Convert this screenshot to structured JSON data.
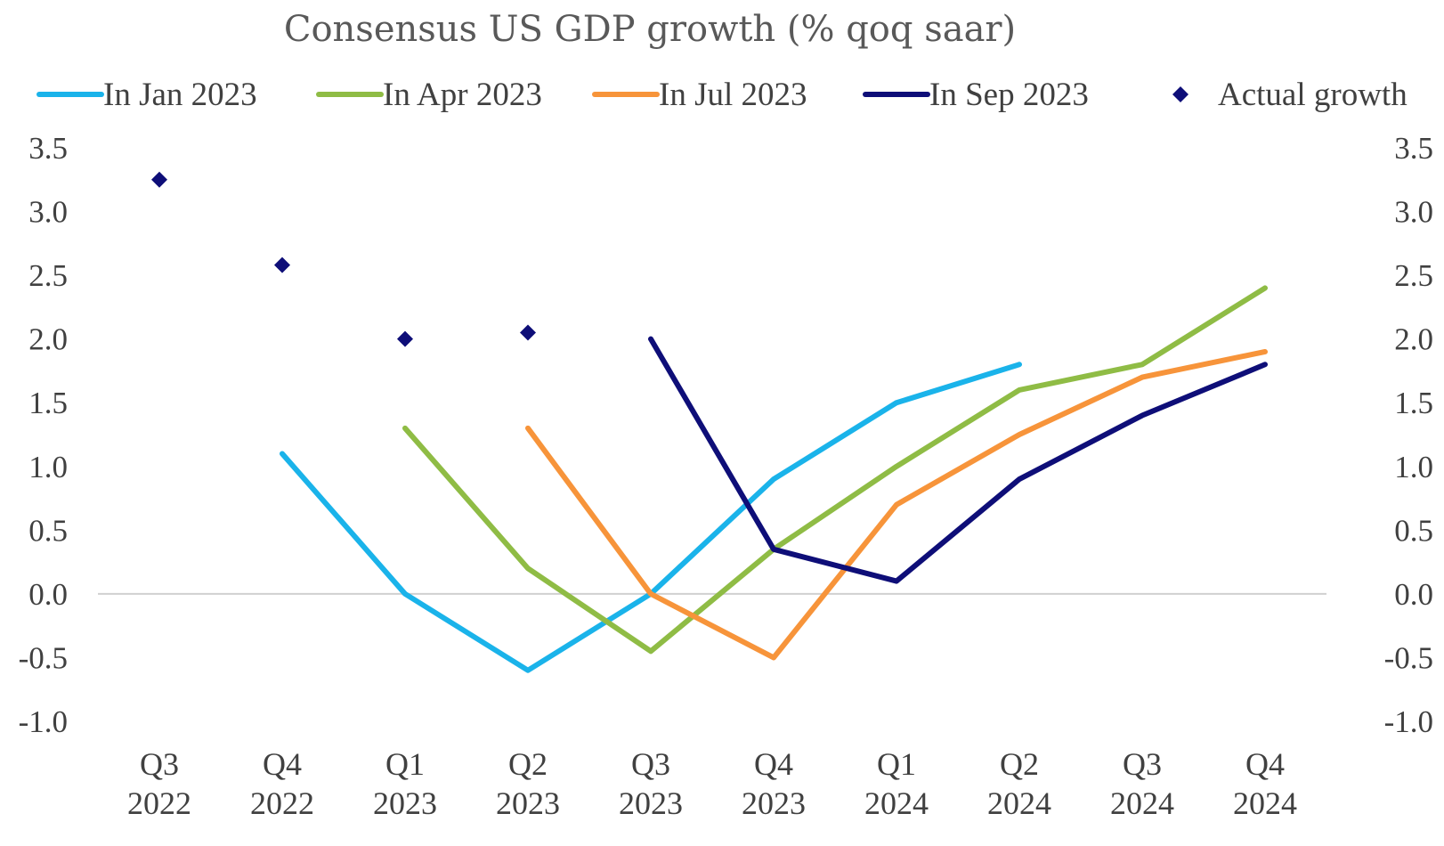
{
  "chart_data": {
    "type": "line",
    "title": "Consensus US GDP growth (% qoq saar)",
    "categories": [
      [
        "Q3",
        "2022"
      ],
      [
        "Q4",
        "2022"
      ],
      [
        "Q1",
        "2023"
      ],
      [
        "Q2",
        "2023"
      ],
      [
        "Q3",
        "2023"
      ],
      [
        "Q4",
        "2023"
      ],
      [
        "Q1",
        "2024"
      ],
      [
        "Q2",
        "2024"
      ],
      [
        "Q3",
        "2024"
      ],
      [
        "Q4",
        "2024"
      ]
    ],
    "ylim": [
      -1.0,
      3.5
    ],
    "yticks": [
      "3.5",
      "3.0",
      "2.5",
      "2.0",
      "1.5",
      "1.0",
      "0.5",
      "0.0",
      "-0.5",
      "-1.0"
    ],
    "ytick_values": [
      3.5,
      3.0,
      2.5,
      2.0,
      1.5,
      1.0,
      0.5,
      0.0,
      -0.5,
      -1.0
    ],
    "legend_position": "top",
    "series": [
      {
        "name": "In Jan 2023",
        "kind": "line",
        "color": "#1ab3ea",
        "values": [
          null,
          1.1,
          0.0,
          -0.6,
          0.0,
          0.9,
          1.5,
          1.8,
          null,
          null
        ]
      },
      {
        "name": "In Apr 2023",
        "kind": "line",
        "color": "#8fbc45",
        "values": [
          null,
          null,
          1.3,
          0.2,
          -0.45,
          0.35,
          1.0,
          1.6,
          1.8,
          2.4
        ]
      },
      {
        "name": "In Jul 2023",
        "kind": "line",
        "color": "#f7943a",
        "values": [
          null,
          null,
          null,
          1.3,
          0.0,
          -0.5,
          0.7,
          1.25,
          1.7,
          1.9
        ]
      },
      {
        "name": "In Sep 2023",
        "kind": "line",
        "color": "#0e0e78",
        "values": [
          null,
          null,
          null,
          null,
          2.0,
          0.35,
          0.1,
          0.9,
          1.4,
          1.8
        ]
      },
      {
        "name": "Actual growth",
        "kind": "marker",
        "color": "#0e0e78",
        "values": [
          3.25,
          2.58,
          2.0,
          2.05,
          null,
          null,
          null,
          null,
          null,
          null
        ]
      }
    ]
  }
}
